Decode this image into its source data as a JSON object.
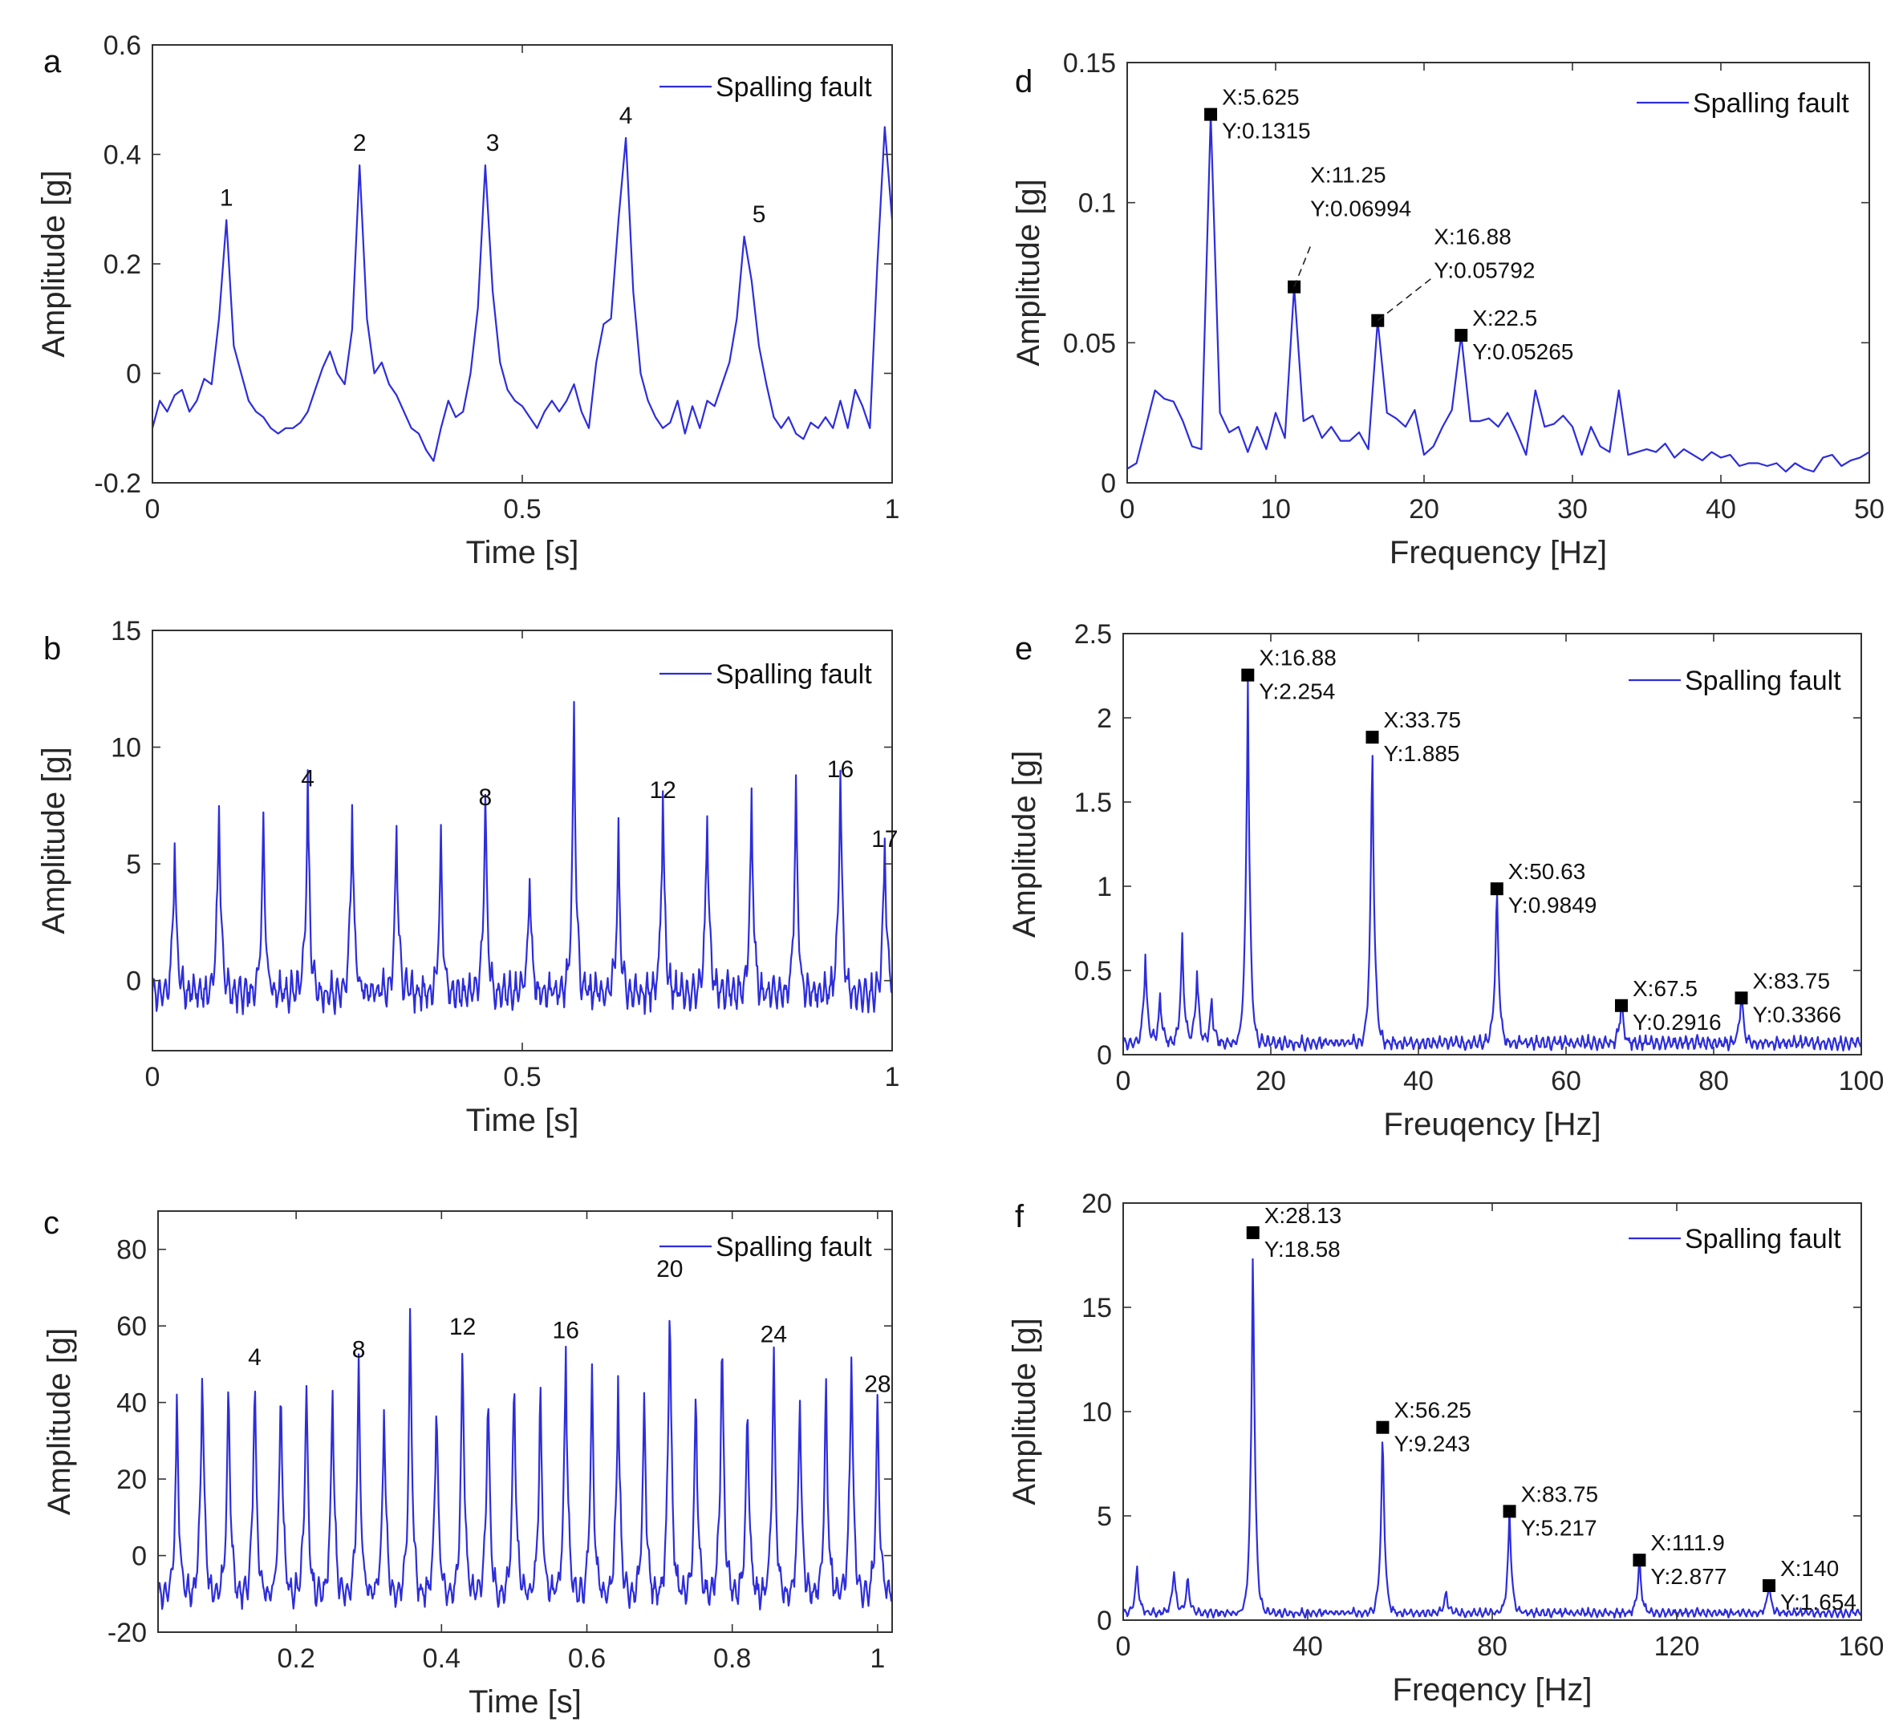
{
  "legend_label": "Spalling fault",
  "colors": {
    "series": "#2d2ddc",
    "axis": "#333333",
    "marker": "#000000"
  },
  "chart_data": [
    {
      "panel": "a",
      "type": "line",
      "xlabel": "Time [s]",
      "ylabel": "Amplitude [g]",
      "xlim": [
        0,
        1
      ],
      "ylim": [
        -0.2,
        0.6
      ],
      "xticks": [
        0,
        0.5,
        1
      ],
      "yticks": [
        -0.2,
        0,
        0.2,
        0.4,
        0.6
      ],
      "legend": "top-right",
      "series": [
        {
          "name": "Spalling fault",
          "x": [
            0,
            0.01,
            0.02,
            0.03,
            0.04,
            0.05,
            0.06,
            0.07,
            0.08,
            0.09,
            0.1,
            0.11,
            0.12,
            0.13,
            0.14,
            0.15,
            0.16,
            0.17,
            0.18,
            0.19,
            0.2,
            0.21,
            0.22,
            0.23,
            0.24,
            0.25,
            0.26,
            0.27,
            0.28,
            0.29,
            0.3,
            0.31,
            0.32,
            0.33,
            0.34,
            0.35,
            0.36,
            0.37,
            0.38,
            0.39,
            0.4,
            0.41,
            0.42,
            0.43,
            0.44,
            0.45,
            0.46,
            0.47,
            0.48,
            0.49,
            0.5,
            0.51,
            0.52,
            0.53,
            0.54,
            0.55,
            0.56,
            0.57,
            0.58,
            0.59,
            0.6,
            0.61,
            0.62,
            0.63,
            0.64,
            0.65,
            0.66,
            0.67,
            0.68,
            0.69,
            0.7,
            0.71,
            0.72,
            0.73,
            0.74,
            0.75,
            0.76,
            0.77,
            0.78,
            0.79,
            0.8,
            0.81,
            0.82,
            0.83,
            0.84,
            0.85,
            0.86,
            0.87,
            0.88,
            0.89,
            0.9,
            0.91,
            0.92,
            0.93,
            0.94,
            0.95,
            0.96,
            0.97,
            0.98,
            0.99,
            1
          ],
          "y": [
            -0.1,
            -0.05,
            -0.07,
            -0.04,
            -0.03,
            -0.07,
            -0.05,
            -0.01,
            -0.02,
            0.1,
            0.28,
            0.05,
            0,
            -0.05,
            -0.07,
            -0.08,
            -0.1,
            -0.11,
            -0.1,
            -0.1,
            -0.09,
            -0.07,
            -0.03,
            0.01,
            0.04,
            0,
            -0.02,
            0.08,
            0.38,
            0.1,
            0,
            0.02,
            -0.02,
            -0.04,
            -0.07,
            -0.1,
            -0.11,
            -0.14,
            -0.16,
            -0.1,
            -0.05,
            -0.08,
            -0.07,
            0,
            0.12,
            0.38,
            0.15,
            0.02,
            -0.03,
            -0.05,
            -0.06,
            -0.08,
            -0.1,
            -0.07,
            -0.05,
            -0.07,
            -0.05,
            -0.02,
            -0.07,
            -0.1,
            0.02,
            0.09,
            0.1,
            0.28,
            0.43,
            0.15,
            0,
            -0.05,
            -0.08,
            -0.1,
            -0.09,
            -0.05,
            -0.11,
            -0.06,
            -0.1,
            -0.05,
            -0.06,
            -0.02,
            0.02,
            0.1,
            0.25,
            0.17,
            0.05,
            -0.02,
            -0.08,
            -0.1,
            -0.08,
            -0.11,
            -0.12,
            -0.09,
            -0.1,
            -0.08,
            -0.1,
            -0.05,
            -0.1,
            -0.03,
            -0.06,
            -0.1,
            0.2,
            0.45,
            0.28
          ]
        }
      ],
      "annotations": [
        {
          "text": "1",
          "x": 0.1,
          "y": 0.28
        },
        {
          "text": "2",
          "x": 0.28,
          "y": 0.38
        },
        {
          "text": "3",
          "x": 0.46,
          "y": 0.38
        },
        {
          "text": "4",
          "x": 0.64,
          "y": 0.43
        },
        {
          "text": "5",
          "x": 0.82,
          "y": 0.25
        }
      ]
    },
    {
      "panel": "b",
      "type": "line",
      "xlabel": "Time [s]",
      "ylabel": "Amplitude [g]",
      "xlim": [
        0,
        1
      ],
      "ylim": [
        -3,
        15
      ],
      "xticks": [
        0,
        0.5,
        1
      ],
      "yticks": [
        0,
        5,
        10,
        15
      ],
      "legend": "top-right",
      "series": [
        {
          "name": "Spalling fault",
          "peaks_x": [
            0.03,
            0.09,
            0.15,
            0.21,
            0.27,
            0.33,
            0.39,
            0.45,
            0.51,
            0.57,
            0.63,
            0.69,
            0.75,
            0.81,
            0.87,
            0.93,
            0.99
          ],
          "peaks_y": [
            5,
            6.8,
            6.2,
            7.7,
            6.6,
            5.7,
            5,
            6.9,
            3.6,
            10.9,
            5,
            7.2,
            6.6,
            7,
            7.4,
            8.1,
            5.1
          ],
          "baseline": [
            -1.5,
            0.5
          ]
        }
      ],
      "annotations": [
        {
          "text": "4",
          "x": 0.21,
          "y": 7.7
        },
        {
          "text": "8",
          "x": 0.45,
          "y": 6.9
        },
        {
          "text": "12",
          "x": 0.69,
          "y": 7.2
        },
        {
          "text": "16",
          "x": 0.93,
          "y": 8.1
        },
        {
          "text": "17",
          "x": 0.99,
          "y": 5.1
        }
      ]
    },
    {
      "panel": "c",
      "type": "line",
      "xlabel": "Time [s]",
      "ylabel": "Amplitude [g]",
      "xlim": [
        0.01,
        1.02
      ],
      "ylim": [
        -20,
        90
      ],
      "xticks": [
        0.2,
        0.4,
        0.6,
        0.8,
        1
      ],
      "yticks": [
        -20,
        0,
        20,
        40,
        60,
        80
      ],
      "legend": "top-right",
      "series": [
        {
          "name": "Spalling fault",
          "peaks_x": [
            0.036,
            0.071,
            0.107,
            0.143,
            0.179,
            0.214,
            0.25,
            0.286,
            0.321,
            0.357,
            0.393,
            0.429,
            0.464,
            0.5,
            0.536,
            0.571,
            0.607,
            0.643,
            0.679,
            0.714,
            0.75,
            0.786,
            0.821,
            0.857,
            0.893,
            0.929,
            0.964,
            1.0
          ],
          "peaks_y": [
            37,
            49,
            43,
            46,
            45,
            43,
            43,
            48,
            36,
            60,
            40,
            54,
            41,
            46,
            43,
            53,
            45,
            44,
            40,
            69,
            41,
            57,
            38,
            52,
            41,
            41,
            53,
            39
          ],
          "baseline": [
            -15,
            -5
          ]
        }
      ],
      "annotations": [
        {
          "text": "4",
          "x": 0.143,
          "y": 46
        },
        {
          "text": "8",
          "x": 0.286,
          "y": 48
        },
        {
          "text": "12",
          "x": 0.429,
          "y": 54
        },
        {
          "text": "16",
          "x": 0.571,
          "y": 53
        },
        {
          "text": "20",
          "x": 0.714,
          "y": 69
        },
        {
          "text": "24",
          "x": 0.857,
          "y": 52
        },
        {
          "text": "28",
          "x": 1.0,
          "y": 39
        }
      ]
    },
    {
      "panel": "d",
      "type": "line",
      "xlabel": "Frequency [Hz]",
      "ylabel": "Amplitude [g]",
      "xlim": [
        0,
        50
      ],
      "ylim": [
        0,
        0.15
      ],
      "xticks": [
        0,
        10,
        20,
        30,
        40,
        50
      ],
      "yticks": [
        0,
        0.05,
        0.1,
        0.15
      ],
      "legend": "top-right",
      "series": [
        {
          "name": "Spalling fault",
          "x": [
            0,
            0.625,
            1.25,
            1.875,
            2.5,
            3.125,
            3.75,
            4.375,
            5,
            5.625,
            6.25,
            6.875,
            7.5,
            8.125,
            8.75,
            9.375,
            10,
            10.625,
            11.25,
            11.875,
            12.5,
            13.125,
            13.75,
            14.375,
            15,
            15.625,
            16.25,
            16.875,
            17.5,
            18.125,
            18.75,
            19.375,
            20,
            20.625,
            21.25,
            21.875,
            22.5,
            23.125,
            23.75,
            24.375,
            25,
            25.625,
            26.25,
            26.875,
            27.5,
            28.125,
            28.75,
            29.375,
            30,
            30.625,
            31.25,
            31.875,
            32.5,
            33.125,
            33.75,
            34.375,
            35,
            35.625,
            36.25,
            36.875,
            37.5,
            38.125,
            38.75,
            39.375,
            40,
            40.625,
            41.25,
            41.875,
            42.5,
            43.125,
            43.75,
            44.375,
            45,
            45.625,
            46.25,
            46.875,
            47.5,
            48.125,
            48.75,
            49.375,
            50
          ],
          "y": [
            0.005,
            0.007,
            0.02,
            0.033,
            0.03,
            0.029,
            0.022,
            0.013,
            0.012,
            0.1315,
            0.025,
            0.018,
            0.02,
            0.011,
            0.02,
            0.012,
            0.025,
            0.016,
            0.06994,
            0.022,
            0.024,
            0.016,
            0.02,
            0.015,
            0.015,
            0.018,
            0.012,
            0.05792,
            0.025,
            0.023,
            0.02,
            0.026,
            0.01,
            0.013,
            0.02,
            0.026,
            0.05265,
            0.022,
            0.022,
            0.023,
            0.02,
            0.025,
            0.018,
            0.01,
            0.033,
            0.02,
            0.021,
            0.024,
            0.02,
            0.01,
            0.02,
            0.013,
            0.011,
            0.033,
            0.01,
            0.011,
            0.012,
            0.011,
            0.014,
            0.009,
            0.012,
            0.01,
            0.008,
            0.011,
            0.009,
            0.01,
            0.006,
            0.007,
            0.007,
            0.006,
            0.007,
            0.004,
            0.007,
            0.005,
            0.004,
            0.009,
            0.01,
            0.006,
            0.008,
            0.009,
            0.011
          ]
        }
      ],
      "datatips": [
        {
          "x": 5.625,
          "y": 0.1315,
          "line1": "X:5.625",
          "line2": "Y:0.1315"
        },
        {
          "x": 11.25,
          "y": 0.06994,
          "line1": "X:11.25",
          "line2": "Y:0.06994"
        },
        {
          "x": 16.88,
          "y": 0.05792,
          "line1": "X:16.88",
          "line2": "Y:0.05792"
        },
        {
          "x": 22.5,
          "y": 0.05265,
          "line1": "X:22.5",
          "line2": "Y:0.05265"
        }
      ]
    },
    {
      "panel": "e",
      "type": "line",
      "xlabel": "Freuqency [Hz]",
      "ylabel": "Amplitude [g]",
      "xlim": [
        0,
        100
      ],
      "ylim": [
        0,
        2.5
      ],
      "xticks": [
        0,
        20,
        40,
        60,
        80,
        100
      ],
      "yticks": [
        0,
        0.5,
        1,
        1.5,
        2,
        2.5
      ],
      "legend": "top-right",
      "series": [
        {
          "name": "Spalling fault",
          "peaks_x": [
            3,
            5,
            8,
            10,
            12,
            16.88,
            33.75,
            50.63,
            67.5,
            83.75
          ],
          "peaks_y": [
            0.55,
            0.3,
            0.65,
            0.45,
            0.28,
            2.254,
            1.885,
            0.9849,
            0.2916,
            0.3366
          ],
          "baseline": [
            0.02,
            0.12
          ]
        }
      ],
      "datatips": [
        {
          "x": 16.88,
          "y": 2.254,
          "line1": "X:16.88",
          "line2": "Y:2.254"
        },
        {
          "x": 33.75,
          "y": 1.885,
          "line1": "X:33.75",
          "line2": "Y:1.885"
        },
        {
          "x": 50.63,
          "y": 0.9849,
          "line1": "X:50.63",
          "line2": "Y:0.9849"
        },
        {
          "x": 67.5,
          "y": 0.2916,
          "line1": "X:67.5",
          "line2": "Y:0.2916"
        },
        {
          "x": 83.75,
          "y": 0.3366,
          "line1": "X:83.75",
          "line2": "Y:0.3366"
        }
      ]
    },
    {
      "panel": "f",
      "type": "line",
      "xlabel": "Freqency [Hz]",
      "ylabel": "Amplitude [g]",
      "xlim": [
        0,
        160
      ],
      "ylim": [
        0,
        20
      ],
      "xticks": [
        0,
        40,
        80,
        120,
        160
      ],
      "yticks": [
        0,
        5,
        10,
        15,
        20
      ],
      "legend": "top-right",
      "series": [
        {
          "name": "Spalling fault",
          "peaks_x": [
            3,
            11,
            14,
            28.13,
            56.25,
            70,
            83.75,
            111.9,
            140
          ],
          "peaks_y": [
            2.4,
            2.3,
            1.8,
            18.58,
            9.243,
            1.1,
            5.217,
            2.877,
            1.654
          ],
          "baseline": [
            0.1,
            0.6
          ]
        }
      ],
      "datatips": [
        {
          "x": 28.13,
          "y": 18.58,
          "line1": "X:28.13",
          "line2": "Y:18.58"
        },
        {
          "x": 56.25,
          "y": 9.243,
          "line1": "X:56.25",
          "line2": "Y:9.243"
        },
        {
          "x": 83.75,
          "y": 5.217,
          "line1": "X:83.75",
          "line2": "Y:5.217"
        },
        {
          "x": 111.9,
          "y": 2.877,
          "line1": "X:111.9",
          "line2": "Y:2.877"
        },
        {
          "x": 140,
          "y": 1.654,
          "line1": "X:140",
          "line2": "Y:1.654"
        }
      ]
    }
  ]
}
